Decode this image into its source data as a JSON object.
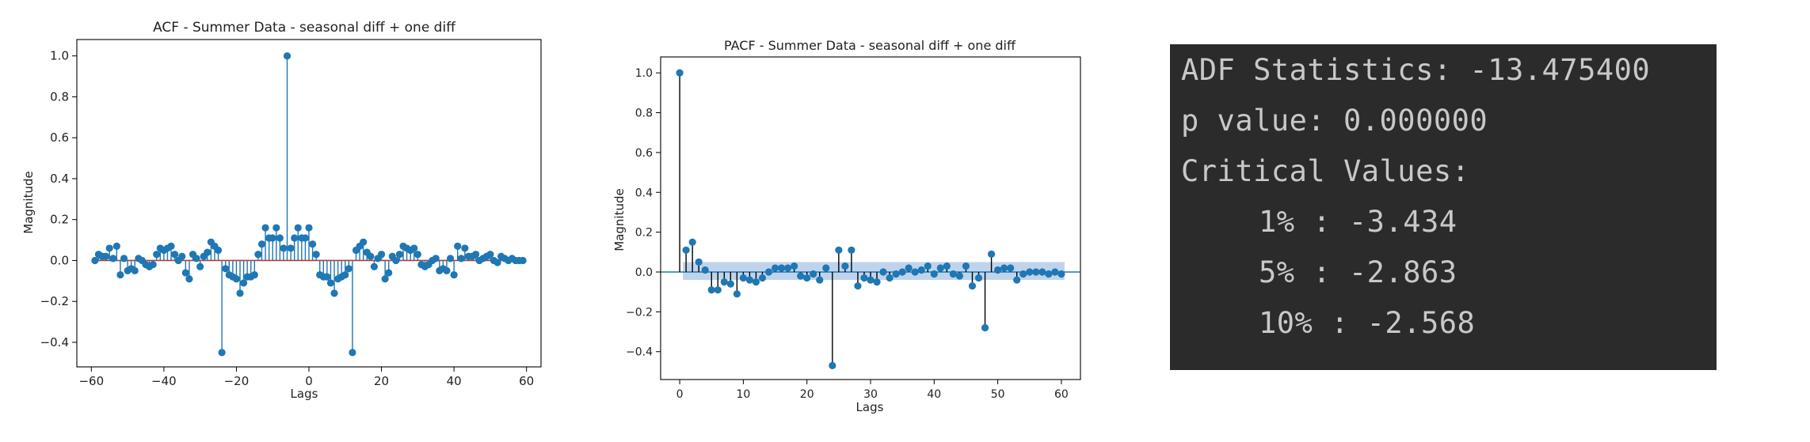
{
  "colors": {
    "marker": "#1f77b4",
    "acf_baseline": "#c0392b",
    "pacf_stem": "#000000",
    "confidence_band": "#a9c6e6",
    "console_bg": "#2b2b2b",
    "console_text": "#c8c8c8"
  },
  "acf_chart": {
    "title": "ACF - Summer Data - seasonal diff + one diff",
    "xlabel": "Lags",
    "ylabel": "Magnitude"
  },
  "pacf_chart": {
    "title": "PACF - Summer Data  - seasonal diff + one diff",
    "xlabel": "Lags",
    "ylabel": "Magnitude"
  },
  "console": {
    "adf_line": "ADF Statistics: -13.475400",
    "pvalue_line": "p value: 0.000000",
    "critical_header": "Critical Values:",
    "critical_values": [
      "1% : -3.434",
      "5% : -2.863",
      "10% : -2.568"
    ]
  },
  "chart_data": [
    {
      "type": "scatter",
      "subtype": "stem",
      "title": "ACF - Summer Data - seasonal diff + one diff",
      "xlabel": "Lags",
      "ylabel": "Magnitude",
      "xlim": [
        -64,
        64
      ],
      "ylim": [
        -0.52,
        1.08
      ],
      "xticks": [
        -60,
        -40,
        -20,
        0,
        20,
        40,
        60
      ],
      "xtick_labels": [
        "−60",
        "−40",
        "−20",
        "0",
        "20",
        "40",
        "60"
      ],
      "yticks": [
        -0.4,
        -0.2,
        0.0,
        0.2,
        0.4,
        0.6,
        0.8,
        1.0
      ],
      "ytick_labels": [
        "−0.4",
        "−0.2",
        "0.0",
        "0.2",
        "0.4",
        "0.6",
        "0.8",
        "1.0"
      ],
      "baseline": 0,
      "grid": false,
      "x": [
        -59,
        -58,
        -57,
        -56,
        -55,
        -54,
        -53,
        -52,
        -51,
        -50,
        -49,
        -48,
        -47,
        -46,
        -45,
        -44,
        -43,
        -42,
        -41,
        -40,
        -39,
        -38,
        -37,
        -36,
        -35,
        -34,
        -33,
        -32,
        -31,
        -30,
        -29,
        -28,
        -27,
        -26,
        -25,
        -24,
        -23,
        -22,
        -21,
        -20,
        -19,
        -18,
        -17,
        -16,
        -15,
        -14,
        -13,
        -12,
        -11,
        -10,
        -9,
        -8,
        -7,
        -6,
        -5,
        -4,
        -3,
        -2,
        -1,
        0,
        1,
        2,
        3,
        4,
        5,
        6,
        7,
        8,
        9,
        10,
        11,
        12,
        13,
        14,
        15,
        16,
        17,
        18,
        19,
        20,
        21,
        22,
        23,
        24,
        25,
        26,
        27,
        28,
        29,
        30,
        31,
        32,
        33,
        34,
        35,
        36,
        37,
        38,
        39,
        40,
        41,
        42,
        43,
        44,
        45,
        46,
        47,
        48,
        49,
        50,
        51,
        52,
        53,
        54,
        55,
        56,
        57,
        58,
        59
      ],
      "y": [
        0.0,
        0.03,
        0.02,
        0.02,
        0.06,
        0.01,
        0.07,
        -0.07,
        0.01,
        -0.05,
        -0.04,
        -0.05,
        0.01,
        0.0,
        -0.02,
        -0.03,
        -0.02,
        0.03,
        0.06,
        0.05,
        0.06,
        0.07,
        0.03,
        0.0,
        0.02,
        -0.06,
        -0.09,
        0.03,
        0.01,
        -0.03,
        0.02,
        0.04,
        0.09,
        0.07,
        0.05,
        -0.45,
        -0.04,
        -0.07,
        -0.08,
        -0.09,
        -0.16,
        -0.11,
        -0.08,
        -0.08,
        -0.07,
        0.03,
        0.08,
        0.16,
        0.11,
        0.11,
        0.16,
        0.11,
        0.06,
        1.0,
        0.06,
        0.11,
        0.16,
        0.11,
        0.11,
        0.16,
        0.08,
        0.03,
        -0.07,
        -0.08,
        -0.08,
        -0.11,
        -0.16,
        -0.09,
        -0.08,
        -0.07,
        -0.04,
        -0.45,
        0.05,
        0.07,
        0.09,
        0.04,
        0.02,
        -0.03,
        0.01,
        0.03,
        -0.09,
        -0.06,
        0.02,
        0.0,
        0.03,
        0.07,
        0.06,
        0.05,
        0.06,
        0.03,
        -0.02,
        -0.03,
        -0.02,
        0.0,
        0.01,
        -0.05,
        -0.04,
        -0.05,
        0.01,
        -0.07,
        0.07,
        0.01,
        0.06,
        0.02,
        0.02,
        0.03,
        0.0,
        0.01,
        0.02,
        0.03,
        0.0,
        -0.01,
        0.02,
        0.01,
        0.0,
        0.01,
        0.0,
        0.0,
        0.0
      ]
    },
    {
      "type": "scatter",
      "subtype": "stem",
      "title": "PACF - Summer Data  - seasonal diff + one diff",
      "xlabel": "Lags",
      "ylabel": "Magnitude",
      "xlim": [
        -3,
        63
      ],
      "ylim": [
        -0.54,
        1.08
      ],
      "xticks": [
        0,
        10,
        20,
        30,
        40,
        50,
        60
      ],
      "xtick_labels": [
        "0",
        "10",
        "20",
        "30",
        "40",
        "50",
        "60"
      ],
      "yticks": [
        -0.4,
        -0.2,
        0.0,
        0.2,
        0.4,
        0.6,
        0.8,
        1.0
      ],
      "ytick_labels": [
        "−0.4",
        "−0.2",
        "0.0",
        "0.2",
        "0.4",
        "0.6",
        "0.8",
        "1.0"
      ],
      "baseline": 0,
      "confidence_interval": [
        -0.04,
        0.05
      ],
      "grid": false,
      "x": [
        0,
        1,
        2,
        3,
        4,
        5,
        6,
        7,
        8,
        9,
        10,
        11,
        12,
        13,
        14,
        15,
        16,
        17,
        18,
        19,
        20,
        21,
        22,
        23,
        24,
        25,
        26,
        27,
        28,
        29,
        30,
        31,
        32,
        33,
        34,
        35,
        36,
        37,
        38,
        39,
        40,
        41,
        42,
        43,
        44,
        45,
        46,
        47,
        48,
        49,
        50,
        51,
        52,
        53,
        54,
        55,
        56,
        57,
        58,
        59,
        60
      ],
      "y": [
        1.0,
        0.11,
        0.15,
        0.05,
        0.01,
        -0.09,
        -0.09,
        -0.05,
        -0.06,
        -0.11,
        -0.03,
        -0.04,
        -0.05,
        -0.03,
        0.0,
        0.02,
        0.02,
        0.02,
        0.03,
        -0.02,
        -0.03,
        -0.01,
        -0.04,
        0.02,
        -0.47,
        0.11,
        0.03,
        0.11,
        -0.07,
        -0.03,
        -0.04,
        -0.05,
        0.0,
        -0.03,
        -0.01,
        0.0,
        0.02,
        0.0,
        0.01,
        0.03,
        -0.01,
        0.02,
        0.03,
        -0.01,
        -0.02,
        0.03,
        -0.07,
        -0.03,
        -0.28,
        0.09,
        0.01,
        0.02,
        0.02,
        -0.04,
        -0.01,
        0.0,
        0.0,
        0.0,
        -0.01,
        0.0,
        -0.01
      ]
    }
  ]
}
